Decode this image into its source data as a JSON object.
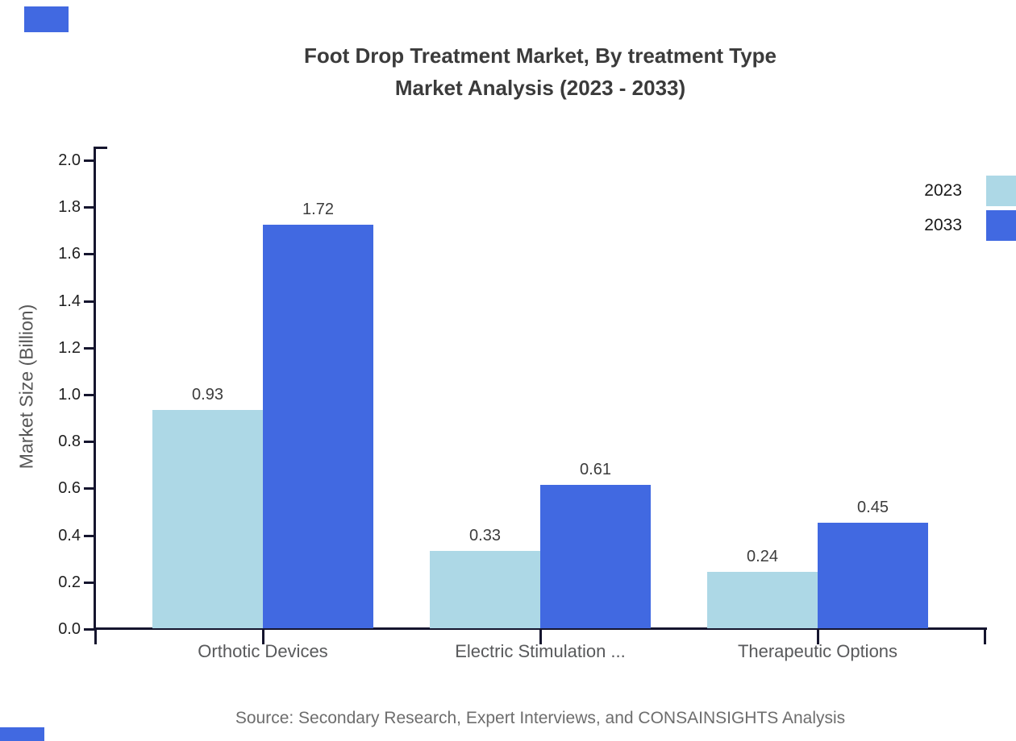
{
  "title": {
    "line1": "Foot Drop Treatment Market, By treatment Type",
    "line2": "Market Analysis (2023 - 2033)"
  },
  "source_note": "Source: Secondary Research, Expert Interviews, and CONSAINSIGHTS Analysis",
  "chart_data": {
    "type": "bar",
    "title": "Foot Drop Treatment Market, By treatment Type — Market Analysis (2023 - 2033)",
    "categories": [
      "Orthotic Devices",
      "Electric Stimulation ...",
      "Therapeutic Options"
    ],
    "series": [
      {
        "name": "2023",
        "color": "#add8e6",
        "values": [
          0.93,
          0.33,
          0.24
        ]
      },
      {
        "name": "2033",
        "color": "#4169e1",
        "values": [
          1.72,
          0.61,
          0.45
        ]
      }
    ],
    "xlabel": "",
    "ylabel": "Market Size (Billion)",
    "ylim": [
      0.0,
      2.0
    ],
    "ytick_step": 0.2,
    "ytick_labels": [
      "0.0",
      "0.2",
      "0.4",
      "0.6",
      "0.8",
      "1.0",
      "1.2",
      "1.4",
      "1.6",
      "1.8",
      "2.0"
    ],
    "grid": false,
    "legend_position": "top-right",
    "value_labels_shown": true,
    "value_label_format": "0.00"
  },
  "colors": {
    "series_2023": "#add8e6",
    "series_2033": "#4169e1",
    "axis": "#15152e",
    "title_text": "#3b3b3b",
    "tick_text": "#1f1f1f",
    "category_text": "#58595b",
    "value_text": "#3c3c3c",
    "ylabel_text": "#565656",
    "legend_text": "#1a1a1a",
    "source_text": "#6d6d6d",
    "accent": "#4169e1"
  }
}
